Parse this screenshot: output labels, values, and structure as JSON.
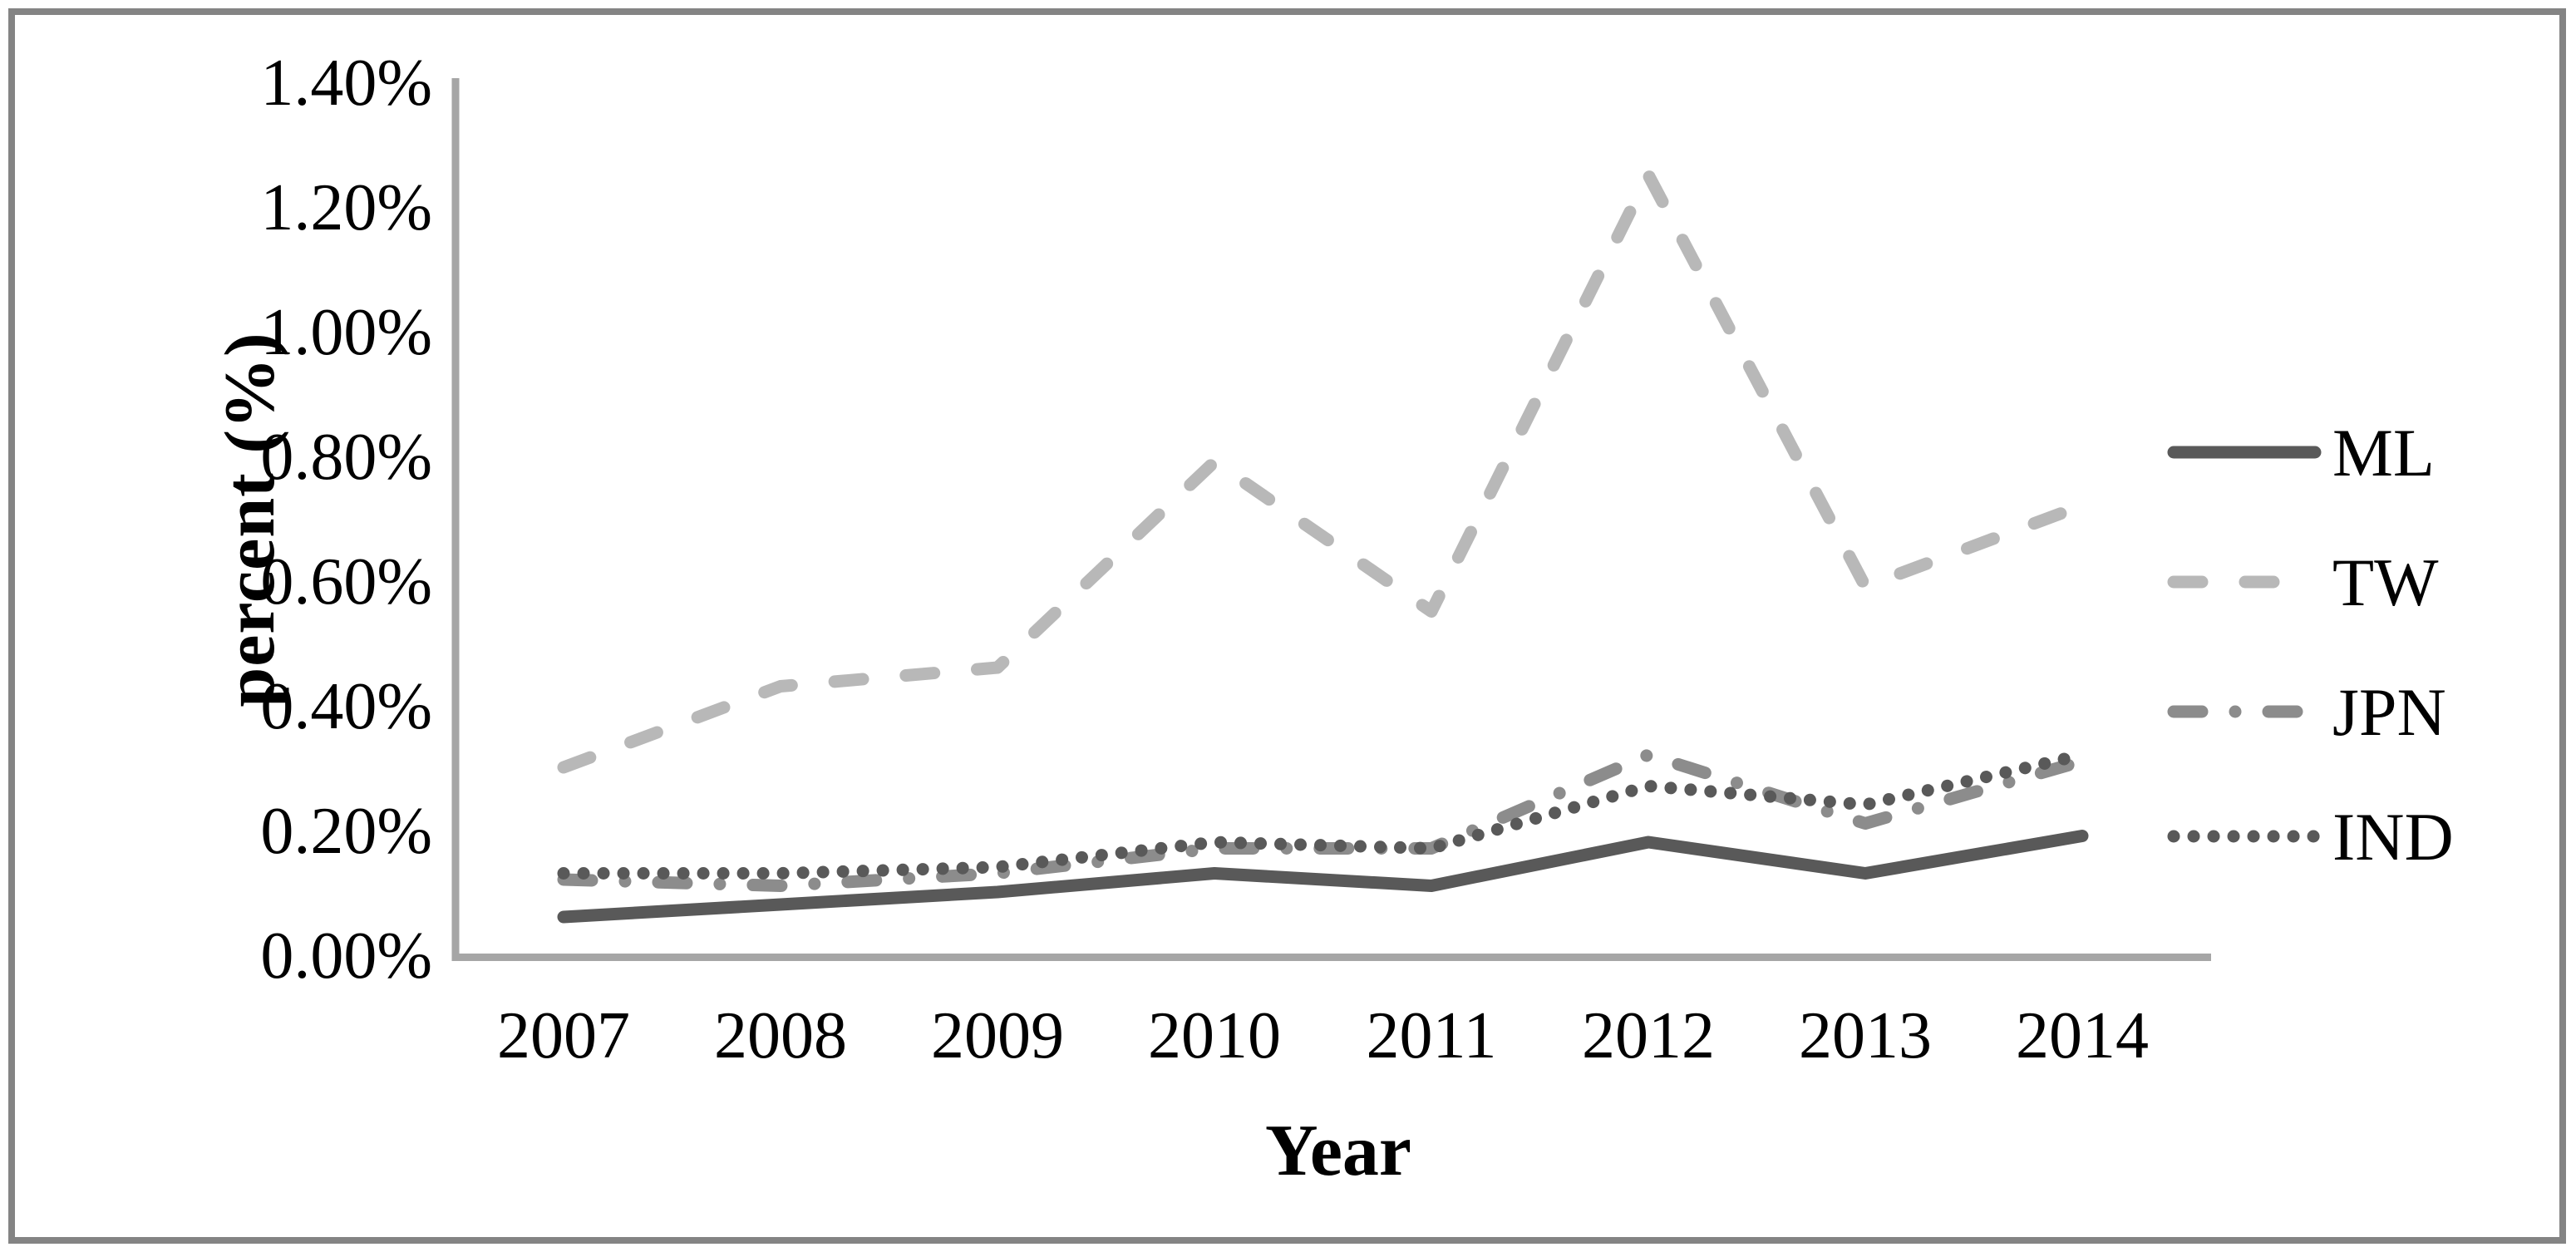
{
  "chart_data": {
    "type": "line",
    "title": "",
    "xlabel": "Year",
    "ylabel": "percent (%)",
    "categories": [
      "2007",
      "2008",
      "2009",
      "2010",
      "2011",
      "2012",
      "2013",
      "2014"
    ],
    "series": [
      {
        "name": "ML",
        "style": "solid",
        "color": "#595959",
        "values": [
          0.06,
          0.08,
          0.1,
          0.13,
          0.11,
          0.18,
          0.13,
          0.19
        ]
      },
      {
        "name": "TW",
        "style": "dashed",
        "color": "#b8b8b8",
        "values": [
          0.3,
          0.43,
          0.46,
          0.79,
          0.55,
          1.25,
          0.59,
          0.72
        ]
      },
      {
        "name": "JPN",
        "style": "dashdot",
        "color": "#8c8c8c",
        "values": [
          0.12,
          0.11,
          0.13,
          0.17,
          0.17,
          0.32,
          0.21,
          0.31
        ]
      },
      {
        "name": "IND",
        "style": "dotted",
        "color": "#595959",
        "values": [
          0.13,
          0.13,
          0.14,
          0.18,
          0.17,
          0.27,
          0.24,
          0.32
        ]
      }
    ],
    "y_ticks": [
      "0.00%",
      "0.20%",
      "0.40%",
      "0.60%",
      "0.80%",
      "1.00%",
      "1.20%",
      "1.40%"
    ],
    "ylim": [
      0,
      1.4
    ],
    "xlim_labels": [
      "2007",
      "2014"
    ],
    "grid": false,
    "legend_position": "right",
    "legend_labels": [
      "ML",
      "TW",
      "JPN",
      "IND"
    ],
    "axis_color": "#a6a6a6",
    "text_color": "#000000"
  }
}
